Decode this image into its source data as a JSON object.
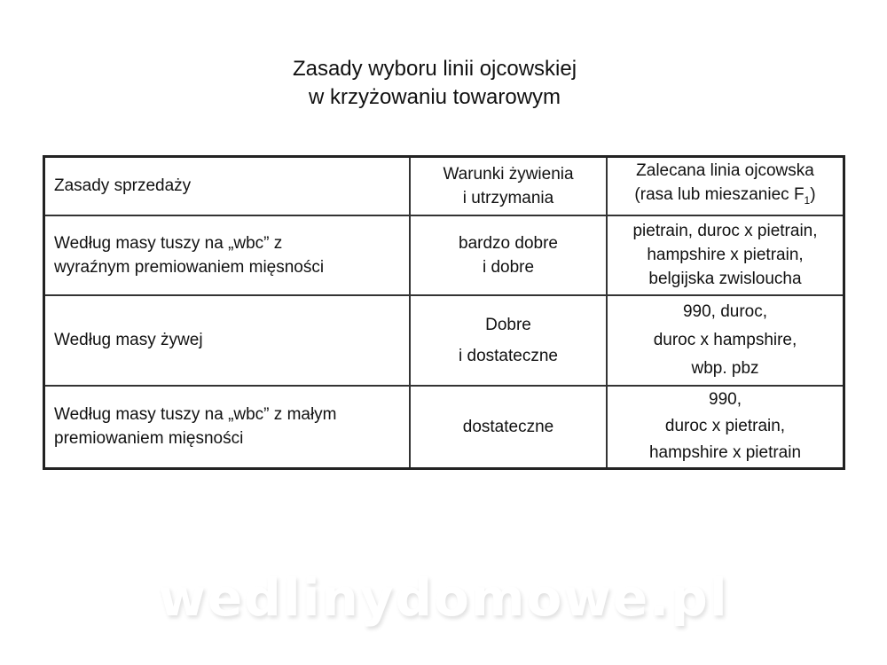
{
  "title": {
    "line1": "Zasady wyboru linii ojcowskiej",
    "line2": "w krzyżowaniu towarowym"
  },
  "table": {
    "headers": [
      {
        "lines": [
          "Zasady sprzedaży"
        ]
      },
      {
        "lines": [
          "Warunki żywienia",
          "i utrzymania"
        ]
      },
      {
        "lines": [
          "Zalecana linia ojcowska",
          "(rasa lub mieszaniec F",
          "1",
          ")"
        ]
      }
    ],
    "rows": [
      {
        "sale": [
          "Według masy tuszy na „wbc” z",
          "wyraźnym premiowaniem mięsności"
        ],
        "conditions": [
          "bardzo dobre",
          "i dobre"
        ],
        "line": [
          "pietrain, duroc x pietrain,",
          "hampshire x pietrain,",
          "belgijska zwisloucha"
        ]
      },
      {
        "sale": [
          "Według masy żywej"
        ],
        "conditions": [
          "Dobre",
          "i dostateczne"
        ],
        "line": [
          "990, duroc,",
          "duroc x hampshire,",
          "wbp. pbz"
        ]
      },
      {
        "sale": [
          "Według masy tuszy na „wbc” z małym",
          "premiowaniem mięsności"
        ],
        "conditions": [
          "dostateczne"
        ],
        "line": [
          "990,",
          "duroc x pietrain,",
          "hampshire x pietrain"
        ]
      }
    ]
  },
  "watermark": "wedlinydomowe.pl"
}
